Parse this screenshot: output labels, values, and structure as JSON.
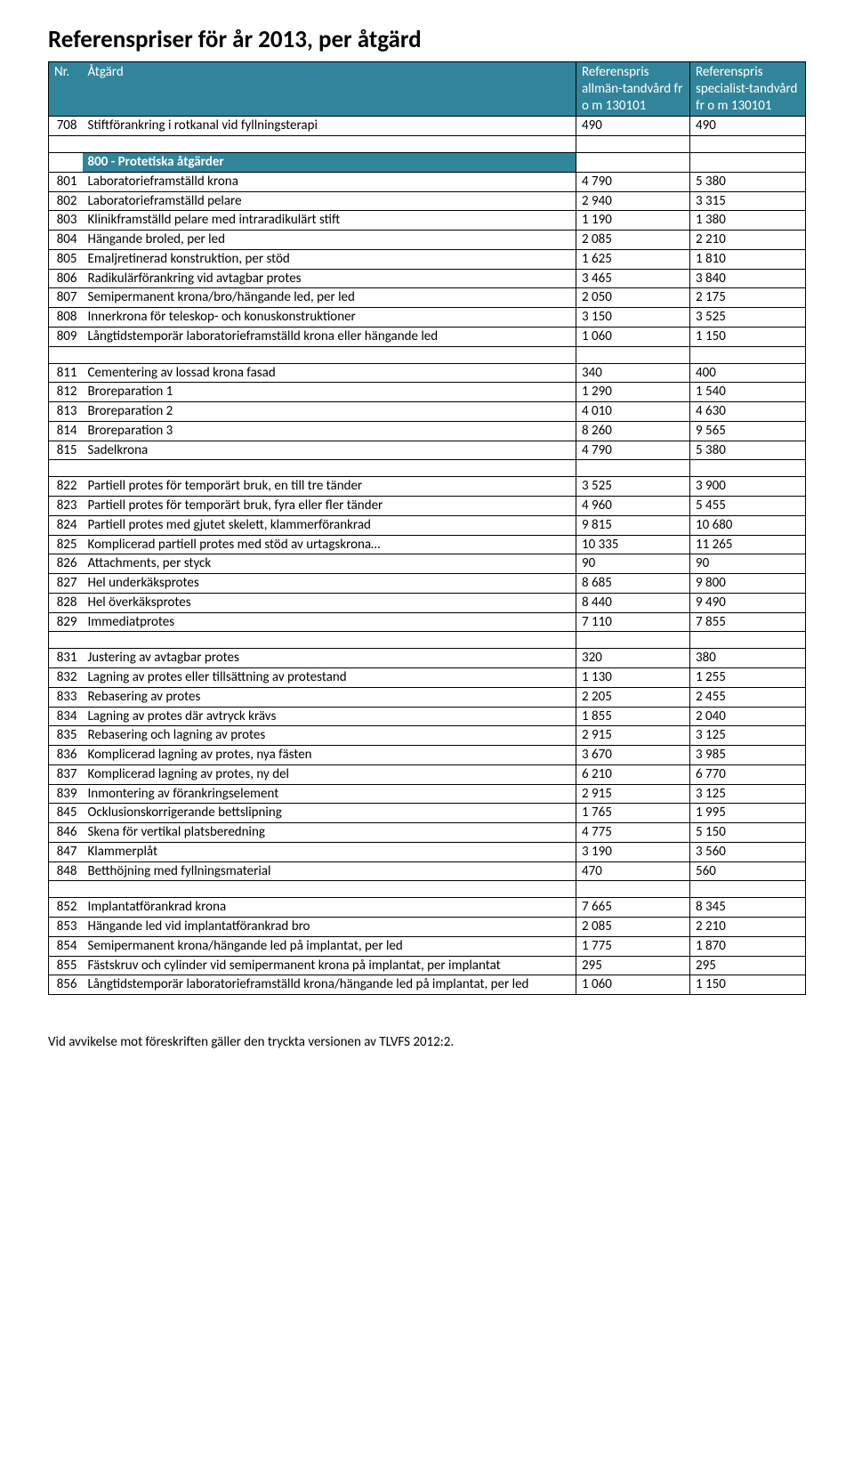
{
  "title": "Referenspriser för år 2013, per åtgärd",
  "header": {
    "nr": "Nr.",
    "desc": "Åtgärd",
    "price1": "Referenspris allmän-tandvård\nfr o m 130101",
    "price2": "Referenspris specialist-tandvård   fr o m 130101"
  },
  "colors": {
    "header_bg": "#31859b",
    "header_fg": "#ffffff",
    "border": "#000000"
  },
  "rows": [
    {
      "nr": "708",
      "desc": "Stiftförankring i rotkanal vid fyllningsterapi",
      "p1": "490",
      "p2": "490"
    },
    {
      "spacer": true
    },
    {
      "section": "800 - Protetiska åtgärder"
    },
    {
      "nr": "801",
      "desc": "Laboratorieframställd krona",
      "p1": "4 790",
      "p2": "5 380"
    },
    {
      "nr": "802",
      "desc": "Laboratorieframställd pelare",
      "p1": "2 940",
      "p2": "3 315"
    },
    {
      "nr": "803",
      "desc": "Klinikframställd pelare med intraradikulärt stift",
      "p1": "1 190",
      "p2": "1 380"
    },
    {
      "nr": "804",
      "desc": "Hängande broled, per led",
      "p1": "2 085",
      "p2": "2 210"
    },
    {
      "nr": "805",
      "desc": "Emaljretinerad konstruktion, per stöd",
      "p1": "1 625",
      "p2": "1 810"
    },
    {
      "nr": "806",
      "desc": "Radikulärförankring vid avtagbar protes",
      "p1": "3 465",
      "p2": "3 840"
    },
    {
      "nr": "807",
      "desc": "Semipermanent krona/bro/hängande led, per led",
      "p1": "2 050",
      "p2": "2 175"
    },
    {
      "nr": "808",
      "desc": "Innerkrona för teleskop- och konuskonstruktioner",
      "p1": "3 150",
      "p2": "3 525"
    },
    {
      "nr": "809",
      "desc": "Långtidstemporär laboratorieframställd krona eller hängande led",
      "p1": "1 060",
      "p2": "1 150",
      "multiline": true
    },
    {
      "spacer": true
    },
    {
      "nr": "811",
      "desc": "Cementering av lossad krona fasad",
      "p1": "340",
      "p2": "400"
    },
    {
      "nr": "812",
      "desc": "Broreparation 1",
      "p1": "1 290",
      "p2": "1 540"
    },
    {
      "nr": "813",
      "desc": "Broreparation 2",
      "p1": "4 010",
      "p2": "4 630"
    },
    {
      "nr": "814",
      "desc": "Broreparation 3",
      "p1": "8 260",
      "p2": "9 565"
    },
    {
      "nr": "815",
      "desc": "Sadelkrona",
      "p1": "4 790",
      "p2": "5 380"
    },
    {
      "spacer": true
    },
    {
      "nr": "822",
      "desc": "Partiell protes för temporärt bruk, en till tre tänder",
      "p1": "3 525",
      "p2": "3 900"
    },
    {
      "nr": "823",
      "desc": "Partiell protes för temporärt bruk, fyra eller fler tänder",
      "p1": "4 960",
      "p2": "5 455"
    },
    {
      "nr": "824",
      "desc": "Partiell protes med gjutet skelett, klammerförankrad",
      "p1": "9 815",
      "p2": "10 680"
    },
    {
      "nr": "825",
      "desc": "Komplicerad partiell protes med stöd av urtagskrona…",
      "p1": "10 335",
      "p2": "11 265"
    },
    {
      "nr": "826",
      "desc": "Attachments, per styck",
      "p1": "90",
      "p2": "90"
    },
    {
      "nr": "827",
      "desc": "Hel underkäksprotes",
      "p1": "8 685",
      "p2": "9 800"
    },
    {
      "nr": "828",
      "desc": "Hel överkäksprotes",
      "p1": "8 440",
      "p2": "9 490"
    },
    {
      "nr": "829",
      "desc": "Immediatprotes",
      "p1": "7 110",
      "p2": "7 855"
    },
    {
      "spacer": true
    },
    {
      "nr": "831",
      "desc": "Justering av avtagbar protes",
      "p1": "320",
      "p2": "380"
    },
    {
      "nr": "832",
      "desc": "Lagning av protes eller tillsättning av protestand",
      "p1": "1 130",
      "p2": "1 255"
    },
    {
      "nr": "833",
      "desc": "Rebasering av protes",
      "p1": "2 205",
      "p2": "2 455"
    },
    {
      "nr": "834",
      "desc": "Lagning av protes där avtryck krävs",
      "p1": "1 855",
      "p2": "2 040"
    },
    {
      "nr": "835",
      "desc": "Rebasering och lagning av protes",
      "p1": "2 915",
      "p2": "3 125"
    },
    {
      "nr": "836",
      "desc": "Komplicerad lagning av protes, nya fästen",
      "p1": "3 670",
      "p2": "3 985"
    },
    {
      "nr": "837",
      "desc": "Komplicerad lagning av protes, ny del",
      "p1": "6 210",
      "p2": "6 770"
    },
    {
      "nr": "839",
      "desc": "Inmontering av förankringselement",
      "p1": "2 915",
      "p2": "3 125"
    },
    {
      "nr": "845",
      "desc": "Ocklusionskorrigerande bettslipning",
      "p1": "1 765",
      "p2": "1 995"
    },
    {
      "nr": "846",
      "desc": "Skena för vertikal platsberedning",
      "p1": "4 775",
      "p2": "5 150"
    },
    {
      "nr": "847",
      "desc": "Klammerplåt",
      "p1": "3 190",
      "p2": "3 560"
    },
    {
      "nr": "848",
      "desc": "Betthöjning med fyllningsmaterial",
      "p1": "470",
      "p2": "560"
    },
    {
      "spacer": true
    },
    {
      "nr": "852",
      "desc": "Implantatförankrad krona",
      "p1": "7 665",
      "p2": "8 345"
    },
    {
      "nr": "853",
      "desc": "Hängande led vid implantatförankrad bro",
      "p1": "2 085",
      "p2": "2 210"
    },
    {
      "nr": "854",
      "desc": "Semipermanent krona/hängande led på implantat, per led",
      "p1": "1 775",
      "p2": "1 870"
    },
    {
      "nr": "855",
      "desc": "Fästskruv och cylinder vid semipermanent krona på implantat, per implantat",
      "p1": "295",
      "p2": "295",
      "multiline": true
    },
    {
      "nr": "856",
      "desc": "Långtidstemporär laboratorieframställd krona/hängande led på implantat, per led",
      "p1": "1 060",
      "p2": "1 150",
      "multiline": true
    }
  ],
  "footer": "Vid avvikelse mot föreskriften gäller den tryckta versionen av TLVFS 2012:2."
}
